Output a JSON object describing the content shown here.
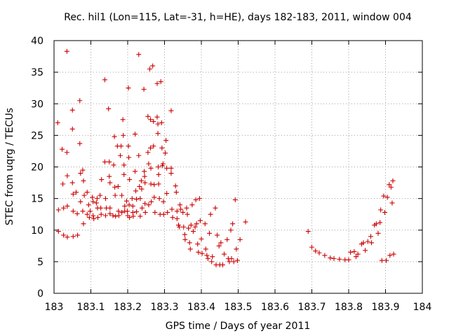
{
  "chart_data": {
    "type": "scatter",
    "title": "Rec. hil1 (Lon=115, Lat=-31, h=HE), days 182-183, 2011, window 004",
    "xlabel": "GPS time / Days of year 2011",
    "ylabel": "STEC from uqrg / TECUs",
    "xlim": [
      183,
      184
    ],
    "ylim": [
      0,
      40
    ],
    "xticks": [
      "183",
      "183.1",
      "183.2",
      "183.3",
      "183.4",
      "183.5",
      "183.6",
      "183.7",
      "183.8",
      "183.9",
      "184"
    ],
    "yticks": [
      "0",
      "5",
      "10",
      "15",
      "20",
      "25",
      "30",
      "35",
      "40"
    ],
    "grid": true,
    "marker": "plus",
    "color": "#cc0000",
    "series": [
      {
        "name": "STEC",
        "points": [
          [
            183.01,
            27.0
          ],
          [
            183.012,
            13.2
          ],
          [
            183.012,
            9.8
          ],
          [
            183.022,
            22.8
          ],
          [
            183.024,
            17.3
          ],
          [
            183.026,
            13.5
          ],
          [
            183.026,
            9.2
          ],
          [
            183.035,
            38.3
          ],
          [
            183.035,
            22.3
          ],
          [
            183.036,
            18.6
          ],
          [
            183.036,
            13.8
          ],
          [
            183.036,
            8.9
          ],
          [
            183.05,
            29.0
          ],
          [
            183.05,
            26.0
          ],
          [
            183.05,
            17.5
          ],
          [
            183.052,
            15.7
          ],
          [
            183.052,
            13.0
          ],
          [
            183.052,
            9.0
          ],
          [
            183.06,
            16.0
          ],
          [
            183.063,
            12.6
          ],
          [
            183.064,
            9.2
          ],
          [
            183.07,
            30.5
          ],
          [
            183.07,
            23.7
          ],
          [
            183.072,
            19.0
          ],
          [
            183.072,
            14.5
          ],
          [
            183.078,
            19.5
          ],
          [
            183.078,
            13.0
          ],
          [
            183.08,
            17.8
          ],
          [
            183.082,
            15.5
          ],
          [
            183.08,
            11.0
          ],
          [
            183.09,
            16.0
          ],
          [
            183.09,
            12.5
          ],
          [
            183.094,
            14.0
          ],
          [
            183.096,
            12.0
          ],
          [
            183.098,
            13.0
          ],
          [
            183.104,
            15.2
          ],
          [
            183.106,
            14.5
          ],
          [
            183.106,
            12.3
          ],
          [
            183.108,
            11.8
          ],
          [
            183.115,
            14.3
          ],
          [
            183.117,
            15.0
          ],
          [
            183.118,
            13.5
          ],
          [
            183.119,
            12.0
          ],
          [
            183.125,
            15.5
          ],
          [
            183.127,
            13.5
          ],
          [
            183.128,
            12.5
          ],
          [
            183.129,
            18.0
          ],
          [
            183.138,
            33.8
          ],
          [
            183.138,
            20.8
          ],
          [
            183.14,
            15.0
          ],
          [
            183.14,
            12.3
          ],
          [
            183.142,
            13.5
          ],
          [
            183.148,
            29.2
          ],
          [
            183.15,
            20.8
          ],
          [
            183.15,
            18.5
          ],
          [
            183.152,
            17.5
          ],
          [
            183.152,
            13.5
          ],
          [
            183.152,
            12.6
          ],
          [
            183.16,
            12.3
          ],
          [
            183.162,
            20.3
          ],
          [
            183.164,
            24.8
          ],
          [
            183.165,
            16.8
          ],
          [
            183.166,
            15.5
          ],
          [
            183.167,
            12.2
          ],
          [
            183.172,
            23.3
          ],
          [
            183.174,
            16.9
          ],
          [
            183.175,
            13.0
          ],
          [
            183.176,
            12.3
          ],
          [
            183.18,
            21.8
          ],
          [
            183.182,
            23.3
          ],
          [
            183.184,
            15.5
          ],
          [
            183.184,
            12.8
          ],
          [
            183.187,
            27.5
          ],
          [
            183.188,
            25.0
          ],
          [
            183.19,
            20.3
          ],
          [
            183.19,
            18.8
          ],
          [
            183.192,
            13.8
          ],
          [
            183.192,
            13.0
          ],
          [
            183.197,
            14.6
          ],
          [
            183.199,
            13.0
          ],
          [
            183.2,
            12.3
          ],
          [
            183.202,
            32.5
          ],
          [
            183.202,
            23.3
          ],
          [
            183.203,
            21.5
          ],
          [
            183.204,
            14.0
          ],
          [
            183.205,
            18.0
          ],
          [
            183.205,
            12.0
          ],
          [
            183.212,
            15.0
          ],
          [
            183.214,
            13.8
          ],
          [
            183.214,
            12.8
          ],
          [
            183.215,
            12.2
          ],
          [
            183.22,
            25.2
          ],
          [
            183.22,
            19.3
          ],
          [
            183.222,
            16.2
          ],
          [
            183.224,
            14.9
          ],
          [
            183.224,
            12.9
          ],
          [
            183.23,
            37.8
          ],
          [
            183.23,
            21.8
          ],
          [
            183.232,
            16.9
          ],
          [
            183.234,
            15.0
          ],
          [
            183.234,
            12.2
          ],
          [
            183.237,
            17.8
          ],
          [
            183.238,
            16.5
          ],
          [
            183.239,
            13.5
          ],
          [
            183.244,
            32.3
          ],
          [
            183.245,
            19.3
          ],
          [
            183.246,
            18.5
          ],
          [
            183.247,
            17.5
          ],
          [
            183.247,
            14.2
          ],
          [
            183.248,
            12.8
          ],
          [
            183.255,
            28.0
          ],
          [
            183.255,
            22.3
          ],
          [
            183.257,
            20.5
          ],
          [
            183.257,
            14.0
          ],
          [
            183.26,
            35.5
          ],
          [
            183.262,
            27.5
          ],
          [
            183.262,
            23.0
          ],
          [
            183.263,
            19.8
          ],
          [
            183.263,
            17.3
          ],
          [
            183.264,
            14.5
          ],
          [
            183.268,
            36.0
          ],
          [
            183.27,
            27.2
          ],
          [
            183.27,
            23.3
          ],
          [
            183.272,
            17.2
          ],
          [
            183.272,
            15.2
          ],
          [
            183.274,
            12.8
          ],
          [
            183.28,
            33.2
          ],
          [
            183.28,
            27.9
          ],
          [
            183.282,
            26.8
          ],
          [
            183.282,
            25.3
          ],
          [
            183.283,
            20.0
          ],
          [
            183.284,
            18.8
          ],
          [
            183.284,
            17.3
          ],
          [
            183.286,
            15.0
          ],
          [
            183.288,
            12.5
          ],
          [
            183.29,
            33.5
          ],
          [
            183.292,
            27.0
          ],
          [
            183.293,
            23.0
          ],
          [
            183.294,
            20.2
          ],
          [
            183.296,
            20.5
          ],
          [
            183.297,
            14.5
          ],
          [
            183.298,
            12.5
          ],
          [
            183.302,
            22.2
          ],
          [
            183.304,
            24.2
          ],
          [
            183.306,
            19.8
          ],
          [
            183.306,
            15.8
          ],
          [
            183.308,
            12.8
          ],
          [
            183.318,
            28.9
          ],
          [
            183.318,
            19.8
          ],
          [
            183.318,
            19.0
          ],
          [
            183.32,
            13.3
          ],
          [
            183.322,
            12.0
          ],
          [
            183.33,
            17.0
          ],
          [
            183.332,
            16.0
          ],
          [
            183.334,
            13.0
          ],
          [
            183.334,
            11.8
          ],
          [
            183.338,
            10.8
          ],
          [
            183.34,
            10.5
          ],
          [
            183.342,
            14.0
          ],
          [
            183.344,
            13.3
          ],
          [
            183.35,
            12.8
          ],
          [
            183.352,
            10.5
          ],
          [
            183.355,
            9.3
          ],
          [
            183.356,
            8.5
          ],
          [
            183.36,
            13.5
          ],
          [
            183.362,
            12.5
          ],
          [
            183.365,
            10.3
          ],
          [
            183.368,
            8.0
          ],
          [
            183.37,
            7.0
          ],
          [
            183.372,
            10.8
          ],
          [
            183.375,
            14.0
          ],
          [
            183.378,
            9.8
          ],
          [
            183.383,
            10.5
          ],
          [
            183.385,
            14.8
          ],
          [
            183.387,
            11.0
          ],
          [
            183.39,
            7.8
          ],
          [
            183.392,
            6.5
          ],
          [
            183.395,
            15.0
          ],
          [
            183.397,
            11.5
          ],
          [
            183.4,
            8.6
          ],
          [
            183.402,
            6.3
          ],
          [
            183.41,
            11.0
          ],
          [
            183.412,
            7.0
          ],
          [
            183.415,
            6.0
          ],
          [
            183.418,
            5.5
          ],
          [
            183.422,
            9.5
          ],
          [
            183.425,
            12.5
          ],
          [
            183.428,
            5.0
          ],
          [
            183.43,
            5.8
          ],
          [
            183.438,
            13.5
          ],
          [
            183.44,
            4.5
          ],
          [
            183.443,
            9.2
          ],
          [
            183.448,
            7.5
          ],
          [
            183.45,
            4.5
          ],
          [
            183.453,
            8.0
          ],
          [
            183.458,
            4.5
          ],
          [
            183.462,
            6.2
          ],
          [
            183.47,
            8.5
          ],
          [
            183.473,
            5.5
          ],
          [
            183.476,
            5.0
          ],
          [
            183.48,
            10.0
          ],
          [
            183.482,
            5.5
          ],
          [
            183.485,
            11.0
          ],
          [
            183.488,
            5.0
          ],
          [
            183.492,
            14.8
          ],
          [
            183.495,
            7.0
          ],
          [
            183.498,
            5.2
          ],
          [
            183.505,
            8.5
          ],
          [
            183.52,
            11.3
          ],
          [
            183.69,
            9.8
          ],
          [
            183.7,
            7.3
          ],
          [
            183.71,
            6.7
          ],
          [
            183.72,
            6.4
          ],
          [
            183.735,
            6.0
          ],
          [
            183.75,
            5.6
          ],
          [
            183.76,
            5.5
          ],
          [
            183.775,
            5.4
          ],
          [
            183.79,
            5.3
          ],
          [
            183.8,
            5.3
          ],
          [
            183.805,
            6.5
          ],
          [
            183.815,
            6.6
          ],
          [
            183.82,
            5.8
          ],
          [
            183.825,
            6.2
          ],
          [
            183.835,
            7.8
          ],
          [
            183.84,
            8.0
          ],
          [
            183.845,
            6.8
          ],
          [
            183.852,
            8.2
          ],
          [
            183.86,
            9.0
          ],
          [
            183.862,
            8.0
          ],
          [
            183.87,
            10.8
          ],
          [
            183.875,
            11.0
          ],
          [
            183.88,
            9.5
          ],
          [
            183.885,
            11.2
          ],
          [
            183.887,
            13.2
          ],
          [
            183.89,
            5.2
          ],
          [
            183.895,
            15.4
          ],
          [
            183.898,
            12.8
          ],
          [
            183.902,
            5.2
          ],
          [
            183.905,
            15.2
          ],
          [
            183.91,
            17.2
          ],
          [
            183.912,
            6.0
          ],
          [
            183.915,
            16.8
          ],
          [
            183.918,
            14.3
          ],
          [
            183.92,
            17.8
          ],
          [
            183.922,
            6.2
          ]
        ]
      }
    ]
  }
}
